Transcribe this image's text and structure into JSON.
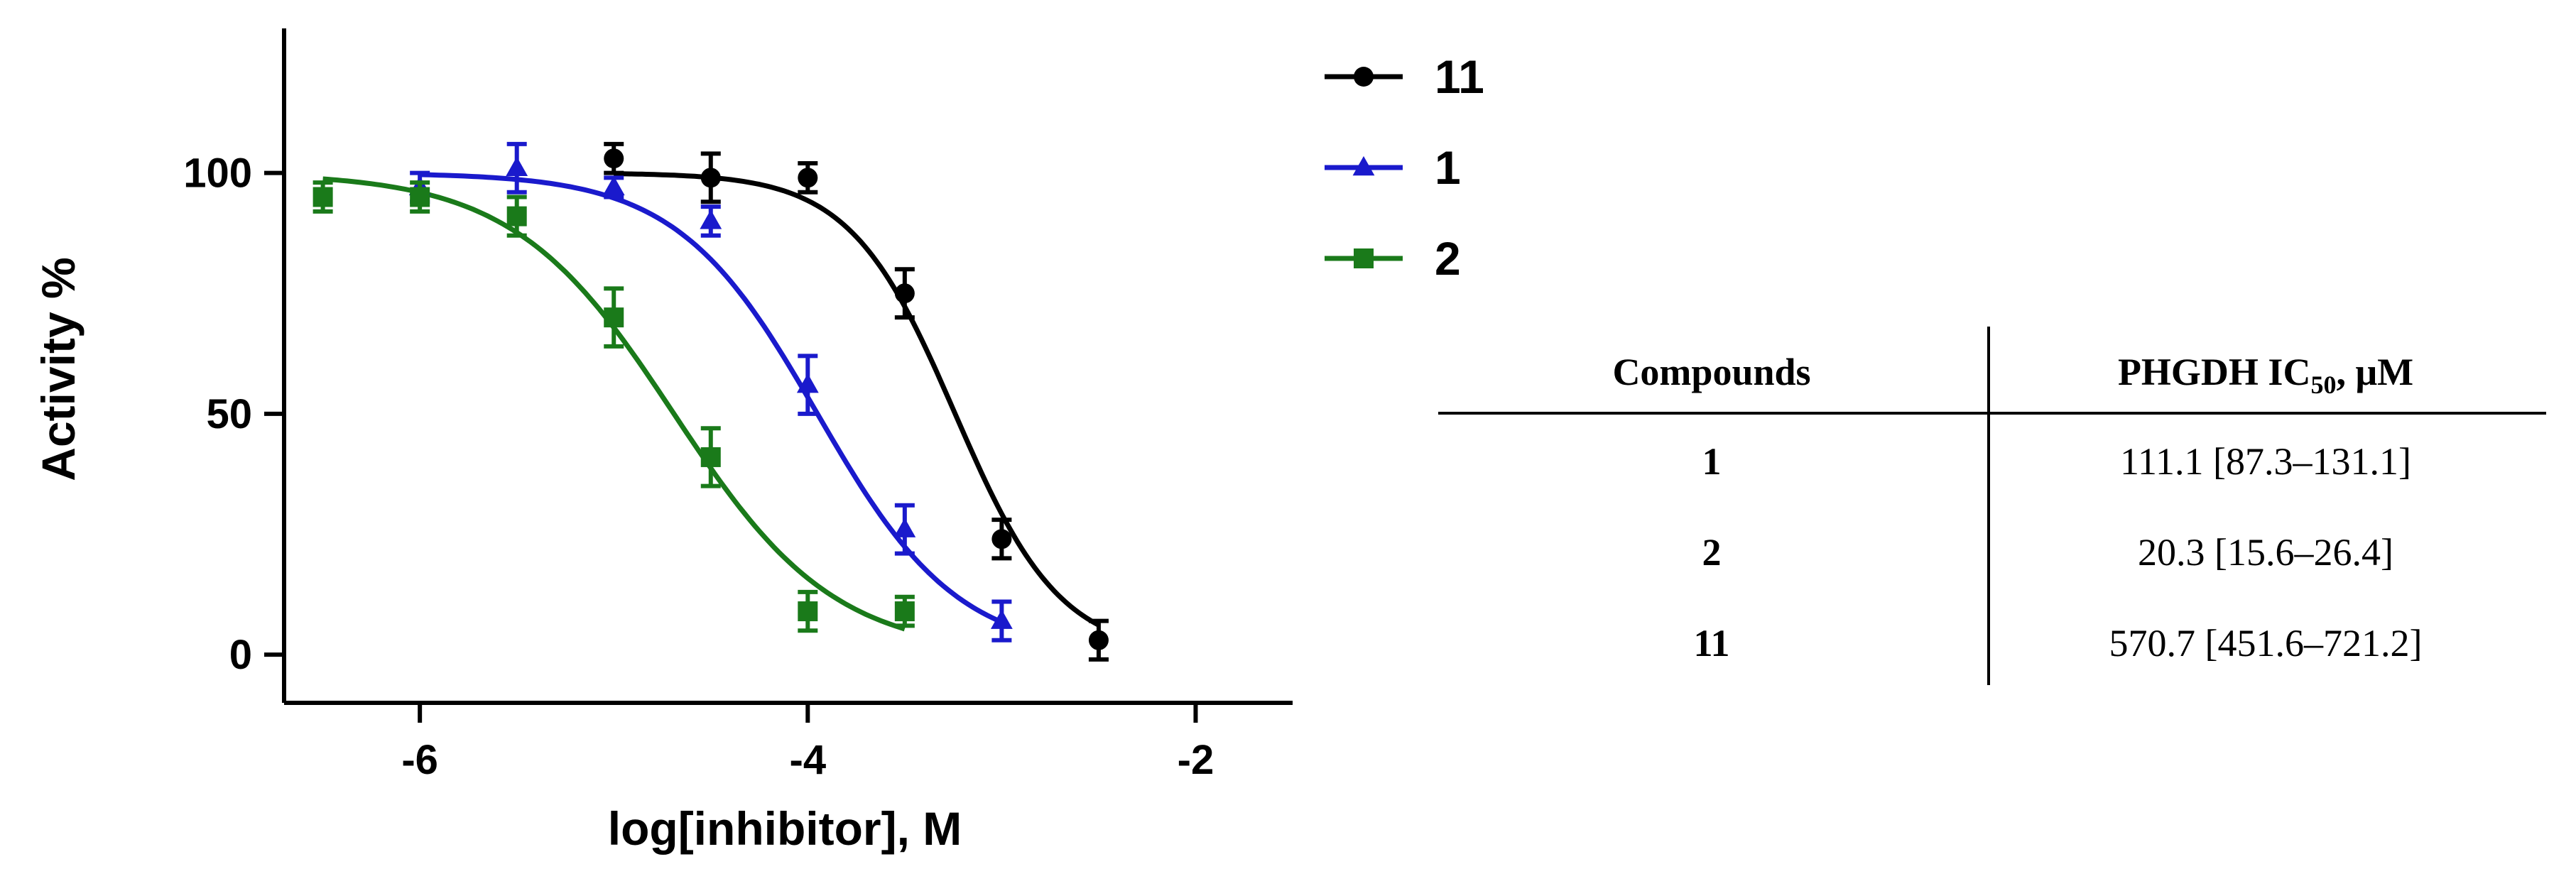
{
  "chart_data": {
    "type": "line",
    "xlabel": "log[inhibitor], M",
    "ylabel": "Activity %",
    "xlim": [
      -6.7,
      -1.5
    ],
    "ylim": [
      -10,
      130
    ],
    "xticks": [
      -6,
      -4,
      -2
    ],
    "xtick_labels": [
      "-6",
      "-4",
      "-2"
    ],
    "yticks": [
      0,
      50,
      100
    ],
    "ytick_labels": [
      "0",
      "50",
      "100"
    ],
    "grid": false,
    "legend_position": "top-right",
    "series": [
      {
        "name": "11",
        "color": "#000000",
        "marker": "circle",
        "x": [
          -5.0,
          -4.5,
          -4.0,
          -3.5,
          -3.0,
          -2.5
        ],
        "y": [
          103,
          99,
          99,
          75,
          24,
          3
        ],
        "err": [
          3,
          5,
          3,
          5,
          4,
          4
        ],
        "fit": {
          "top": 100,
          "bottom": 0,
          "log_ic50": -3.24,
          "hill": 1.6,
          "x_from": -5.0,
          "x_to": -2.5
        }
      },
      {
        "name": "1",
        "color": "#1a1acc",
        "marker": "triangle",
        "x": [
          -6.0,
          -5.5,
          -5.0,
          -4.5,
          -4.0,
          -3.5,
          -3.0
        ],
        "y": [
          97,
          101,
          97,
          90,
          56,
          26,
          7
        ],
        "err": [
          3,
          5,
          2,
          3,
          6,
          5,
          4
        ],
        "fit": {
          "top": 100,
          "bottom": 0,
          "log_ic50": -3.95,
          "hill": 1.2,
          "x_from": -6.0,
          "x_to": -3.0
        }
      },
      {
        "name": "2",
        "color": "#1a7a1a",
        "marker": "square",
        "x": [
          -6.5,
          -6.0,
          -5.5,
          -5.0,
          -4.5,
          -4.0,
          -3.5
        ],
        "y": [
          95,
          95,
          91,
          70,
          41,
          9,
          9
        ],
        "err": [
          3,
          3,
          4,
          6,
          6,
          4,
          3
        ],
        "fit": {
          "top": 100,
          "bottom": 0,
          "log_ic50": -4.69,
          "hill": 1.05,
          "x_from": -6.5,
          "x_to": -3.5
        }
      }
    ]
  },
  "table": {
    "headers": [
      "Compounds",
      "PHGDH IC",
      "50",
      ", μM"
    ],
    "rows": [
      {
        "compound": "1",
        "value": "111.1 [87.3–131.1]"
      },
      {
        "compound": "2",
        "value": "20.3 [15.6–26.4]"
      },
      {
        "compound": "11",
        "value": "570.7 [451.6–721.2]"
      }
    ]
  }
}
